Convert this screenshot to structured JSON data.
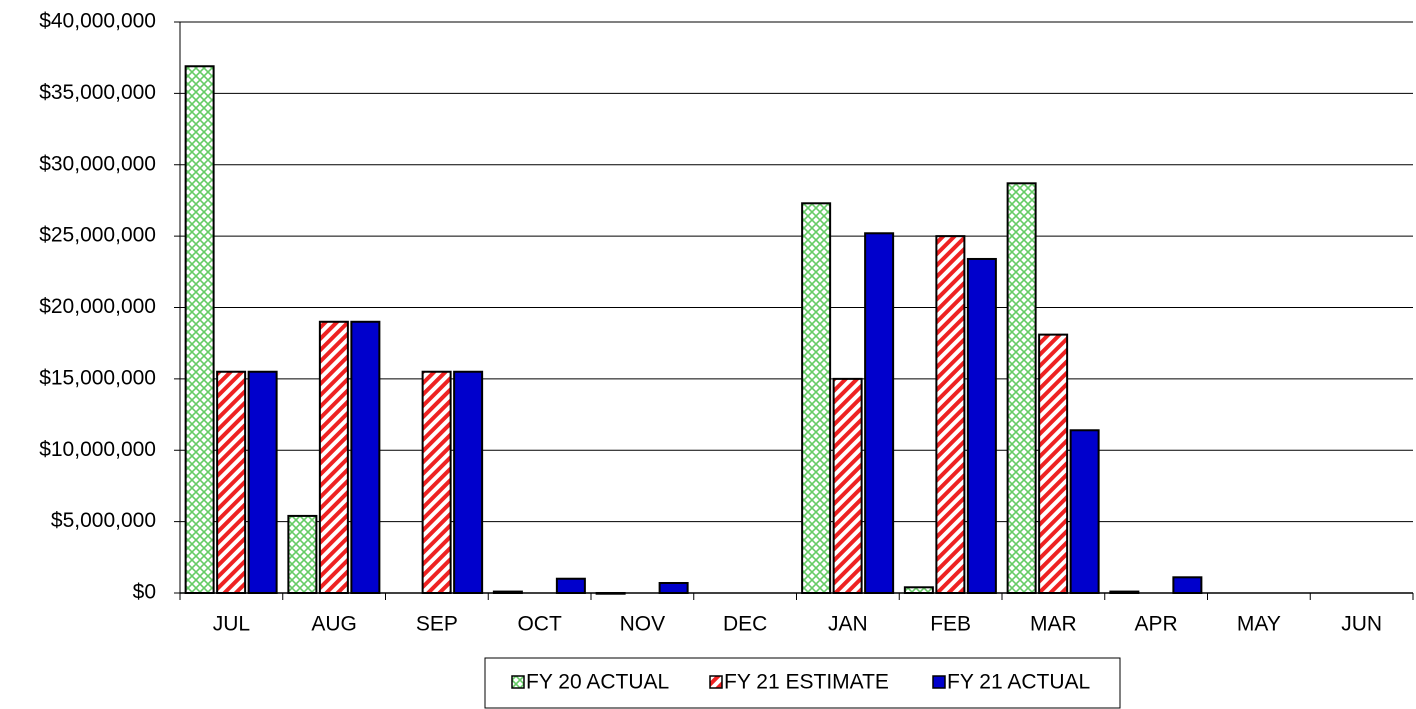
{
  "chart_data": {
    "type": "bar",
    "categories": [
      "JUL",
      "AUG",
      "SEP",
      "OCT",
      "NOV",
      "DEC",
      "JAN",
      "FEB",
      "MAR",
      "APR",
      "MAY",
      "JUN"
    ],
    "series": [
      {
        "name": "FY 20 ACTUAL",
        "color": "#99dd99",
        "values": [
          36900000,
          5400000,
          0,
          100000,
          -50000,
          0,
          27300000,
          400000,
          28700000,
          100000,
          null,
          null
        ]
      },
      {
        "name": "FY 21 ESTIMATE",
        "color": "#ee2222",
        "values": [
          15500000,
          19000000,
          15500000,
          0,
          0,
          0,
          15000000,
          25000000,
          18100000,
          0,
          null,
          null
        ]
      },
      {
        "name": "FY 21 ACTUAL",
        "color": "#0000cc",
        "values": [
          15500000,
          19000000,
          15500000,
          1000000,
          700000,
          0,
          25200000,
          23400000,
          11400000,
          1100000,
          null,
          null
        ]
      }
    ],
    "ylim": [
      0,
      40000000
    ],
    "yticks": [
      {
        "value": 0,
        "label": "$0"
      },
      {
        "value": 5000000,
        "label": "$5,000,000"
      },
      {
        "value": 10000000,
        "label": "$10,000,000"
      },
      {
        "value": 15000000,
        "label": "$15,000,000"
      },
      {
        "value": 20000000,
        "label": "$20,000,000"
      },
      {
        "value": 25000000,
        "label": "$25,000,000"
      },
      {
        "value": 30000000,
        "label": "$30,000,000"
      },
      {
        "value": 35000000,
        "label": "$35,000,000"
      },
      {
        "value": 40000000,
        "label": "$40,000,000"
      }
    ],
    "grid": true,
    "legend": "bottom"
  }
}
